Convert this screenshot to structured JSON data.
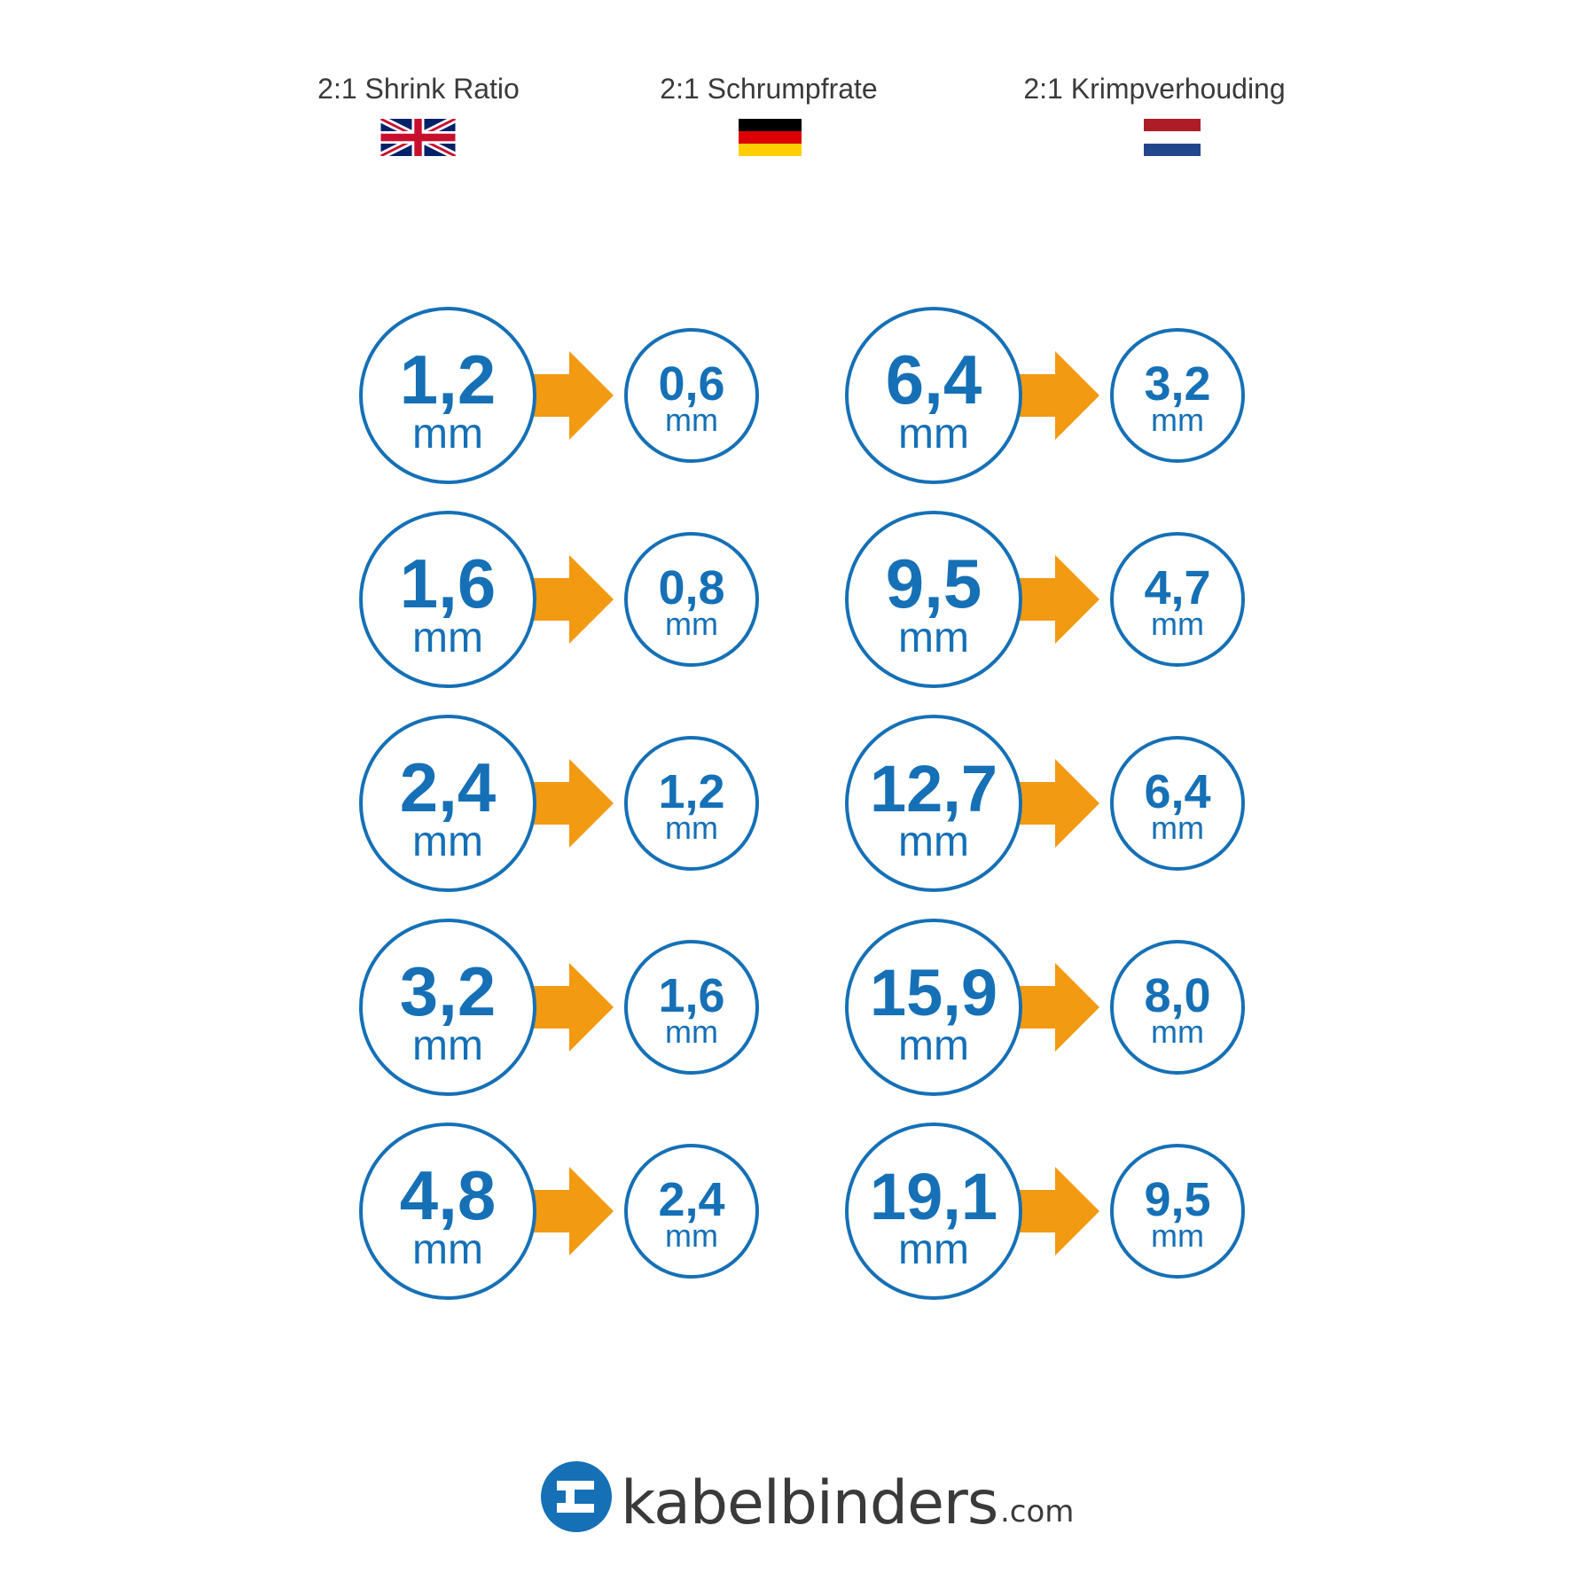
{
  "header": {
    "languages": [
      {
        "label": "2:1 Shrink Ratio",
        "flag": "uk-flag-icon"
      },
      {
        "label": "2:1 Schrumpfrate",
        "flag": "germany-flag-icon"
      },
      {
        "label": "2:1 Krimpverhouding",
        "flag": "netherlands-flag-icon"
      }
    ]
  },
  "colors": {
    "circle_blue": "#1570b6",
    "arrow_orange": "#f29a12",
    "text_dark": "#3a3a3a"
  },
  "sizes": [
    [
      {
        "before": "1,2",
        "after": "0,6",
        "unit": "mm"
      },
      {
        "before": "1,6",
        "after": "0,8",
        "unit": "mm"
      },
      {
        "before": "2,4",
        "after": "1,2",
        "unit": "mm"
      },
      {
        "before": "3,2",
        "after": "1,6",
        "unit": "mm"
      },
      {
        "before": "4,8",
        "after": "2,4",
        "unit": "mm"
      }
    ],
    [
      {
        "before": "6,4",
        "after": "3,2",
        "unit": "mm"
      },
      {
        "before": "9,5",
        "after": "4,7",
        "unit": "mm"
      },
      {
        "before": "12,7",
        "after": "6,4",
        "unit": "mm"
      },
      {
        "before": "15,9",
        "after": "8,0",
        "unit": "mm"
      },
      {
        "before": "19,1",
        "after": "9,5",
        "unit": "mm"
      }
    ]
  ],
  "brand": {
    "name": "kabelbinders",
    "tld": ".com"
  }
}
